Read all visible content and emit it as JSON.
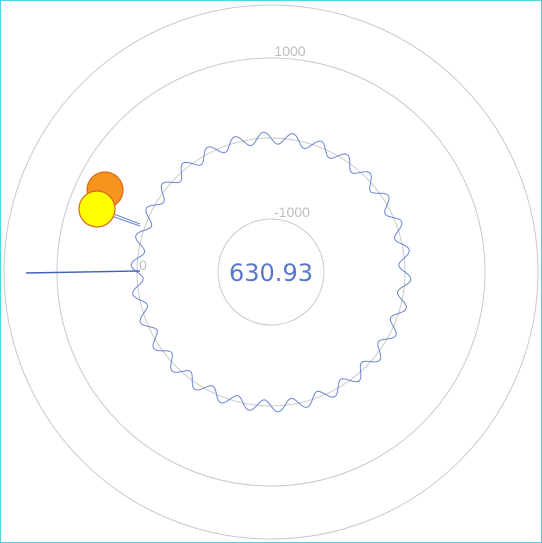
{
  "chart_data": {
    "type": "radial-wave",
    "center_value": "630.93",
    "ring_labels": [
      "1000",
      "-1000",
      "0"
    ],
    "wave": {
      "base_radius": 0,
      "lobes": 30
    },
    "markers": [
      {
        "name": "orange",
        "color": "#f7941d",
        "stroke": "#d9671a"
      },
      {
        "name": "yellow",
        "color": "#ffff00",
        "stroke": "#d9671a"
      }
    ]
  },
  "colors": {
    "frame": "#4dd6dc",
    "wave": "#6a86d2",
    "ring": "#c9c9c9",
    "label": "#bdbdbd",
    "center_text": "#5a78c9"
  }
}
